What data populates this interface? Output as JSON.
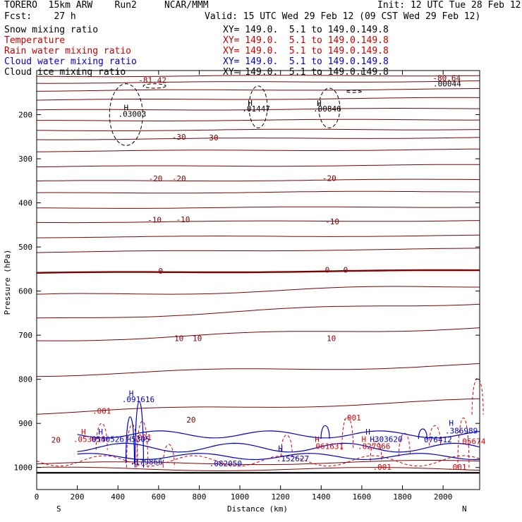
{
  "header": {
    "model": "TORERO  15km ARW    Run2     NCAR/MMM",
    "init": "Init: 12 UTC Tue 28 Feb 12",
    "fcst": "Fcst:    27 h",
    "valid": "Valid: 15 UTC Wed 29 Feb 12 (09 CST Wed 29 Feb 12)"
  },
  "legend": [
    {
      "name": "Snow mixing ratio",
      "xy": "XY= 149.0.  5.1 to 149.0.149.8",
      "color": "#000000"
    },
    {
      "name": "Temperature",
      "xy": "XY= 149.0.  5.1 to 149.0.149.8",
      "color": "#cc0000"
    },
    {
      "name": "Rain water mixing ratio",
      "xy": "XY= 149.0.  5.1 to 149.0.149.8",
      "color": "#cc0000"
    },
    {
      "name": "Cloud water mixing ratio",
      "xy": "XY= 149.0.  5.1 to 149.0.149.8",
      "color": "#0000cc"
    },
    {
      "name": "Cloud ice mixing ratio",
      "xy": "XY= 149.0.  5.1 to 149.0.149.8",
      "color": "#000000"
    }
  ],
  "chart_data": {
    "type": "cross-section-contour",
    "ylabel": "Pressure (hPa)",
    "xlabel": "Distance (km)",
    "xlim": [
      0,
      2180
    ],
    "ylim": [
      1050,
      100
    ],
    "yticks": [
      200,
      300,
      400,
      500,
      600,
      700,
      800,
      900,
      1000
    ],
    "xticks": [
      0,
      200,
      400,
      600,
      800,
      1000,
      1200,
      1400,
      1600,
      1800,
      2000
    ],
    "end_labels": {
      "left": "S",
      "right": "N"
    },
    "colors": {
      "temperature": "#800000",
      "rain": "#dd0000",
      "cloud_water": "#0000cc",
      "ice": "#000000"
    },
    "temperature_isotherms_hPa": [
      {
        "p_left": 113,
        "p_right": 111
      },
      {
        "p_left": 128,
        "p_right": 124
      },
      {
        "p_left": 146,
        "p_right": 142
      },
      {
        "p_left": 167,
        "p_right": 162
      },
      {
        "p_left": 190,
        "p_right": 186
      },
      {
        "p_left": 214,
        "p_right": 211
      },
      {
        "p_left": 236,
        "p_right": 233
      },
      {
        "p_left": 256,
        "p_right": 252
      },
      {
        "p_left": 283,
        "p_right": 279
      },
      {
        "p_left": 318,
        "p_right": 314
      },
      {
        "p_left": 351,
        "p_right": 347
      },
      {
        "p_left": 378,
        "p_right": 374
      },
      {
        "p_left": 412,
        "p_right": 409
      },
      {
        "p_left": 444,
        "p_right": 440
      },
      {
        "p_left": 478,
        "p_right": 474
      },
      {
        "p_left": 512,
        "p_right": 504
      },
      {
        "p_left": 559,
        "p_right": 553,
        "bold": true
      },
      {
        "p_left": 611,
        "p_right": 588
      },
      {
        "p_left": 664,
        "p_right": 626
      },
      {
        "p_left": 712,
        "p_right": 682
      },
      {
        "p_left": 790,
        "p_right": 767
      },
      {
        "p_left": 876,
        "p_right": 848
      },
      {
        "p_left": 992,
        "p_right": 987
      },
      {
        "p_left": 1003,
        "p_right": 1004
      }
    ],
    "temperature_labels": [
      {
        "x": 570,
        "p": 128,
        "text": "-81.42"
      },
      {
        "x": 2018,
        "p": 123,
        "text": "-80.64"
      },
      {
        "x": 700,
        "p": 257,
        "text": "-30"
      },
      {
        "x": 860,
        "p": 258,
        "text": "-30"
      },
      {
        "x": 585,
        "p": 351,
        "text": "-20"
      },
      {
        "x": 700,
        "p": 351,
        "text": "-20"
      },
      {
        "x": 1440,
        "p": 350,
        "text": "-20"
      },
      {
        "x": 580,
        "p": 445,
        "text": "-10"
      },
      {
        "x": 720,
        "p": 444,
        "text": "-10"
      },
      {
        "x": 1455,
        "p": 449,
        "text": "-10"
      },
      {
        "x": 610,
        "p": 561,
        "text": "0"
      },
      {
        "x": 1430,
        "p": 558,
        "text": "0"
      },
      {
        "x": 1520,
        "p": 558,
        "text": "0"
      },
      {
        "x": 700,
        "p": 713,
        "text": "10"
      },
      {
        "x": 790,
        "p": 713,
        "text": "10"
      },
      {
        "x": 1450,
        "p": 713,
        "text": "10"
      },
      {
        "x": 95,
        "p": 944,
        "text": "20"
      },
      {
        "x": 760,
        "p": 898,
        "text": "20"
      }
    ],
    "ice_labels": [
      {
        "x": 440,
        "p": 190,
        "text": "H"
      },
      {
        "x": 470,
        "p": 205,
        "text": ".03003"
      },
      {
        "x": 1050,
        "p": 180,
        "text": "H"
      },
      {
        "x": 1080,
        "p": 193,
        "text": ".01447"
      },
      {
        "x": 1390,
        "p": 180,
        "text": "H"
      },
      {
        "x": 1430,
        "p": 193,
        "text": ".00846"
      },
      {
        "x": 2020,
        "p": 136,
        "text": ".00044"
      }
    ],
    "cloud_water_labels": [
      {
        "x": 465,
        "p": 838,
        "text": "H"
      },
      {
        "x": 500,
        "p": 852,
        "text": ".091616"
      },
      {
        "x": 315,
        "p": 925,
        "text": "H"
      },
      {
        "x": 540,
        "p": 993,
        "text": ".179866"
      },
      {
        "x": 930,
        "p": 997,
        "text": ".082050"
      },
      {
        "x": 1200,
        "p": 963,
        "text": "H"
      },
      {
        "x": 1260,
        "p": 986,
        "text": ".152627"
      },
      {
        "x": 1630,
        "p": 925,
        "text": "H"
      },
      {
        "x": 2040,
        "p": 905,
        "text": "H"
      },
      {
        "x": 2090,
        "p": 923,
        "text": ".386989"
      }
    ],
    "rain_labels": [
      {
        "x": 320,
        "p": 878,
        "text": ".001"
      },
      {
        "x": 230,
        "p": 925,
        "text": "H"
      },
      {
        "x": 260,
        "p": 942,
        "text": ".053015"
      },
      {
        "x": 520,
        "p": 938,
        "text": ".001"
      },
      {
        "x": 1380,
        "p": 942,
        "text": "H"
      },
      {
        "x": 1430,
        "p": 958,
        "text": ".061631"
      },
      {
        "x": 1550,
        "p": 893,
        "text": ".001"
      },
      {
        "x": 1610,
        "p": 942,
        "text": "H"
      },
      {
        "x": 1660,
        "p": 958,
        "text": ".027966"
      },
      {
        "x": 1700,
        "p": 1005,
        "text": ".001"
      },
      {
        "x": 2140,
        "p": 947,
        "text": ".05674"
      },
      {
        "x": 2070,
        "p": 1005,
        "text": ".001"
      }
    ],
    "rain_overlap_labels": [
      {
        "x": 350,
        "p": 942,
        "text": "0540526"
      },
      {
        "x": 500,
        "p": 942,
        "text": "H5305"
      },
      {
        "x": 1720,
        "p": 942,
        "text": "H303620"
      },
      {
        "x": 1975,
        "p": 943,
        "text": "076412"
      }
    ]
  }
}
